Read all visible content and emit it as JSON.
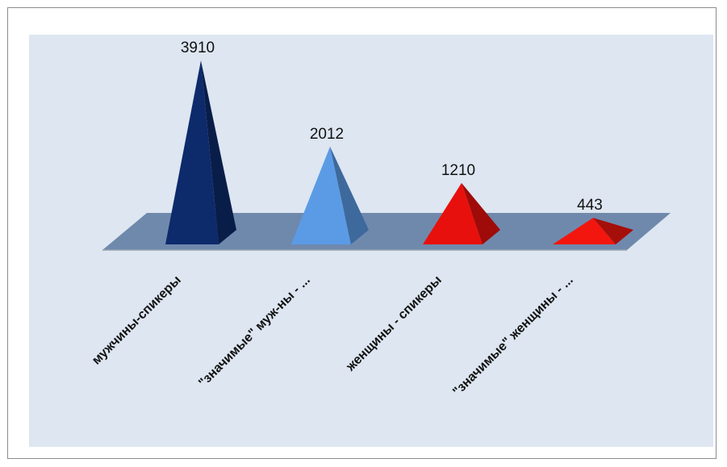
{
  "chart_data": {
    "type": "bar",
    "shape": "pyramid-3d",
    "title": "",
    "xlabel": "",
    "ylabel": "",
    "categories": [
      "мужчины-спикеры",
      "\"значимые\" муж-ны - ...",
      "женщины - спикеры",
      "\"значимые\" женщины - ..."
    ],
    "values": [
      3910,
      2012,
      1210,
      443
    ],
    "value_labels": [
      "3910",
      "2012",
      "1210",
      "443"
    ],
    "colors": [
      "#0d2a6b",
      "#5b9be6",
      "#e8100c",
      "#f2160f"
    ],
    "plot_background": "#dde6f1",
    "floor_color": "#6f89ad",
    "grid": false,
    "legend": "none"
  }
}
